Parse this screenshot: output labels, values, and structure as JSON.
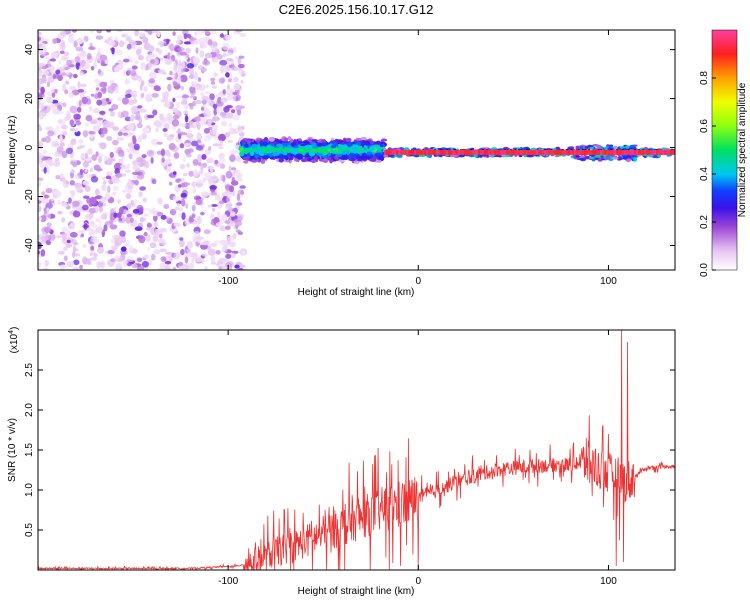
{
  "title": "C2E6.2025.156.10.17.G12",
  "chart_data": [
    {
      "type": "heatmap",
      "xlabel": "Height of straight line (km)",
      "ylabel": "Frequency (Hz)",
      "xlim": [
        -200,
        135
      ],
      "ylim": [
        -50,
        48
      ],
      "xticks": [
        -100,
        0,
        100
      ],
      "yticks": [
        -40,
        -20,
        0,
        20,
        40
      ],
      "colorbar": {
        "label": "Normalized spectral amplitude",
        "range": [
          0,
          1
        ],
        "ticks": [
          0.0,
          0.2,
          0.4,
          0.6,
          0.8
        ],
        "tick_labels": [
          "0.0",
          "0.2",
          "0.4",
          "0.6",
          "0.8"
        ]
      },
      "regions": [
        {
          "x_range": [
            -200,
            -92
          ],
          "freq_range": [
            -50,
            48
          ],
          "amplitude": "low (0.05-0.2)",
          "pattern": "scattered noise"
        },
        {
          "x_range": [
            -92,
            -18
          ],
          "freq_range": [
            -5,
            5
          ],
          "amplitude": "0.2-0.5"
        },
        {
          "x_range": [
            -18,
            135
          ],
          "freq_center": -2,
          "amplitude": "high (~1.0)"
        }
      ],
      "grid": false
    },
    {
      "type": "line",
      "xlabel": "Height of straight line (km)",
      "ylabel": "SNR (10 * v/v)",
      "y_scale_label": "(x10",
      "y_scale_exp": "4",
      "xlim": [
        -200,
        135
      ],
      "ylim": [
        0,
        3.0
      ],
      "xticks": [
        -100,
        0,
        100
      ],
      "yticks": [
        0.5,
        1.0,
        1.5,
        2.0,
        2.5
      ],
      "ytick_labels": [
        "0.5",
        "1.0",
        "1.5",
        "2.0",
        "2.5"
      ],
      "series_color": "#ee3333",
      "trend": {
        "x": [
          -200,
          -120,
          -95,
          -85,
          -75,
          -60,
          -40,
          -20,
          0,
          20,
          40,
          60,
          80,
          90,
          100,
          110,
          120,
          135
        ],
        "y": [
          0.02,
          0.02,
          0.05,
          0.12,
          0.22,
          0.35,
          0.55,
          0.75,
          0.9,
          1.1,
          1.25,
          1.3,
          1.32,
          1.35,
          1.2,
          1.1,
          1.28,
          1.3
        ]
      },
      "spikes": [
        {
          "x": 104,
          "y": 2.4
        },
        {
          "x": 107,
          "y": 3.0
        },
        {
          "x": 110,
          "y": 2.85
        },
        {
          "x": 100,
          "y": 1.7
        },
        {
          "x": 97,
          "y": 1.8
        },
        {
          "x": 104,
          "y": 0.05
        },
        {
          "x": 108,
          "y": 0.1
        }
      ],
      "grid": false
    }
  ]
}
